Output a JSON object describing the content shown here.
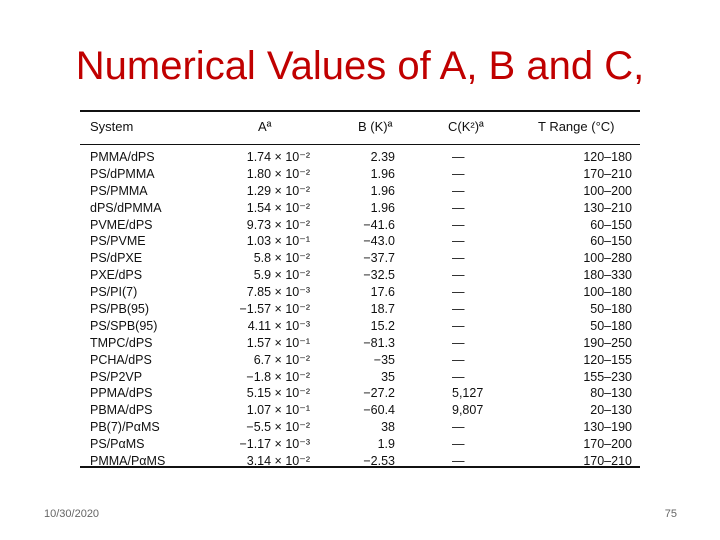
{
  "slide": {
    "title": "Numerical Values of A, B and C,",
    "date": "10/30/2020",
    "page_number": "75"
  },
  "table": {
    "headers": {
      "system": "System",
      "a": "Aª",
      "b": "B (K)ª",
      "c": "C(K²)ª",
      "t": "T Range (°C)"
    },
    "rows": [
      {
        "system": "PMMA/dPS",
        "a": "1.74 × 10⁻²",
        "b": "2.39",
        "c": "—",
        "t": "120–180"
      },
      {
        "system": "PS/dPMMA",
        "a": "1.80 × 10⁻²",
        "b": "1.96",
        "c": "—",
        "t": "170–210"
      },
      {
        "system": "PS/PMMA",
        "a": "1.29 × 10⁻²",
        "b": "1.96",
        "c": "—",
        "t": "100–200"
      },
      {
        "system": "dPS/dPMMA",
        "a": "1.54 × 10⁻²",
        "b": "1.96",
        "c": "—",
        "t": "130–210"
      },
      {
        "system": "PVME/dPS",
        "a": "9.73 × 10⁻²",
        "b": "−41.6",
        "c": "—",
        "t": "60–150"
      },
      {
        "system": "PS/PVME",
        "a": "1.03 × 10⁻¹",
        "b": "−43.0",
        "c": "—",
        "t": "60–150"
      },
      {
        "system": "PS/dPXE",
        "a": "5.8 × 10⁻²",
        "b": "−37.7",
        "c": "—",
        "t": "100–280"
      },
      {
        "system": "PXE/dPS",
        "a": "5.9 × 10⁻²",
        "b": "−32.5",
        "c": "—",
        "t": "180–330"
      },
      {
        "system": "PS/PI(7)",
        "a": "7.85 × 10⁻³",
        "b": "17.6",
        "c": "—",
        "t": "100–180"
      },
      {
        "system": "PS/PB(95)",
        "a": "−1.57 × 10⁻²",
        "b": "18.7",
        "c": "—",
        "t": "50–180"
      },
      {
        "system": "PS/SPB(95)",
        "a": "4.11 × 10⁻³",
        "b": "15.2",
        "c": "—",
        "t": "50–180"
      },
      {
        "system": "TMPC/dPS",
        "a": "1.57 × 10⁻¹",
        "b": "−81.3",
        "c": "—",
        "t": "190–250"
      },
      {
        "system": "PCHA/dPS",
        "a": "6.7 × 10⁻²",
        "b": "−35",
        "c": "—",
        "t": "120–155"
      },
      {
        "system": "PS/P2VP",
        "a": "−1.8 × 10⁻²",
        "b": "35",
        "c": "—",
        "t": "155–230"
      },
      {
        "system": "PPMA/dPS",
        "a": "5.15 × 10⁻²",
        "b": "−27.2",
        "c": "5,127",
        "t": "80–130"
      },
      {
        "system": "PBMA/dPS",
        "a": "1.07 × 10⁻¹",
        "b": "−60.4",
        "c": "9,807",
        "t": "20–130"
      },
      {
        "system": "PB(7)/PαMS",
        "a": "−5.5 × 10⁻²",
        "b": "38",
        "c": "—",
        "t": "130–190"
      },
      {
        "system": "PS/PαMS",
        "a": "−1.17 × 10⁻³",
        "b": "1.9",
        "c": "—",
        "t": "170–200"
      },
      {
        "system": "PMMA/PαMS",
        "a": "3.14 × 10⁻²",
        "b": "−2.53",
        "c": "—",
        "t": "170–210"
      }
    ]
  }
}
